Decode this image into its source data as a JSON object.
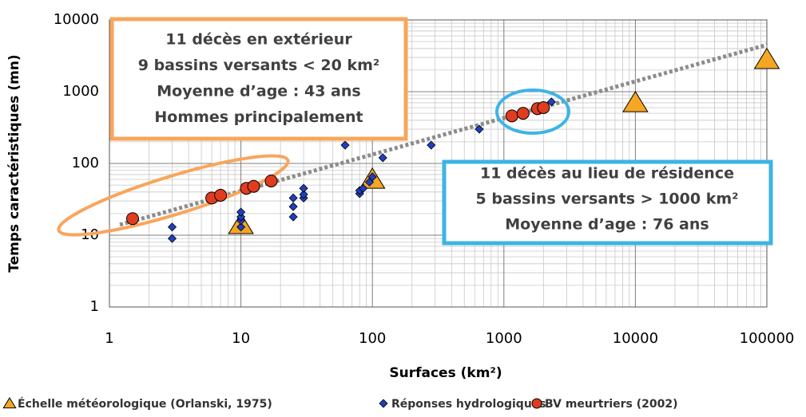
{
  "chart_data": {
    "type": "scatter",
    "x_label": "Surfaces (km²)",
    "y_label": "Temps caractéristiques (mn)",
    "log_x": true,
    "log_y": true,
    "grid": true,
    "xlim": [
      1,
      100000
    ],
    "ylim": [
      1,
      10000
    ],
    "xticks": [
      1,
      10,
      100,
      1000,
      10000,
      100000
    ],
    "yticks": [
      1,
      10,
      100,
      1000,
      10000
    ],
    "series": [
      {
        "name": "Échelle météorologique (Orlanski, 1975)",
        "marker": "triangle",
        "color": "#f5a623",
        "x": [
          10,
          100,
          10000,
          100000
        ],
        "values": [
          14,
          60,
          700,
          2800
        ]
      },
      {
        "name": "Réponses hydrologiques",
        "marker": "diamond",
        "color": "#1f3fbf",
        "x": [
          3,
          3,
          10,
          10,
          10,
          10,
          25,
          25,
          25,
          30,
          30,
          30,
          62,
          80,
          80,
          85,
          95,
          100,
          120,
          280,
          650,
          2000,
          2300
        ],
        "values": [
          9,
          13,
          13,
          16,
          18,
          21,
          18,
          25,
          33,
          33,
          37,
          45,
          180,
          38,
          42,
          45,
          55,
          65,
          120,
          180,
          300,
          620,
          720
        ]
      },
      {
        "name": "BV meurtriers (2002)",
        "marker": "circle",
        "color": "#e03c1f",
        "x": [
          1.5,
          6,
          7,
          11,
          12.5,
          17,
          1150,
          1400,
          1800,
          2000
        ],
        "values": [
          17,
          33,
          36,
          45,
          48,
          57,
          460,
          500,
          580,
          600
        ]
      }
    ],
    "trendline": {
      "color": "#8c8c8c",
      "x": [
        1.2,
        100000
      ],
      "values": [
        14,
        4500
      ]
    },
    "annotations": [
      {
        "lines": [
          "11 décès en extérieur",
          "9 bassins versants < 20 km²",
          "Moyenne d’age : 43 ans",
          "Hommes principalement"
        ],
        "color": "#f9a55b"
      },
      {
        "lines": [
          "11 décès au lieu de résidence",
          "5 bassins versants > 1000 km²",
          "Moyenne d’age : 76 ans"
        ],
        "color": "#3cb4e5"
      }
    ]
  }
}
